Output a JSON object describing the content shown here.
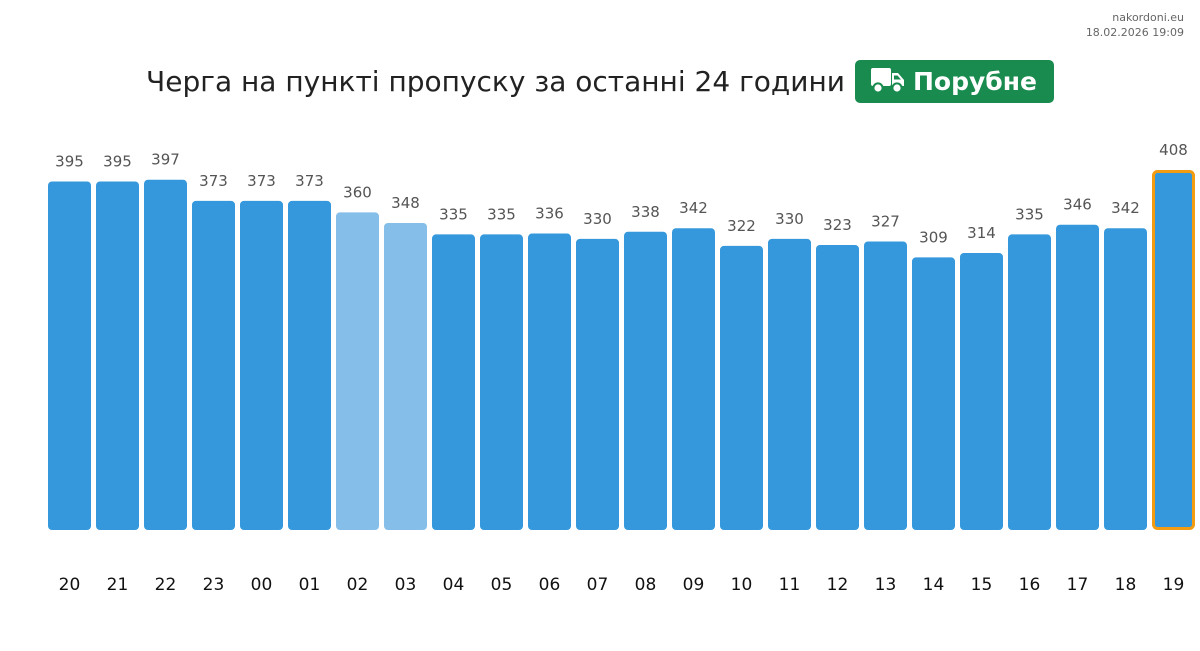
{
  "header": {
    "site": "nakordoni.eu",
    "timestamp": "18.02.2026 19:09"
  },
  "title": "Черга на пункті пропуску за останні 24 години",
  "badge": {
    "label": "Порубне",
    "icon": "truck-icon",
    "color": "#1a8b4f"
  },
  "colors": {
    "bar": "#3698dc",
    "bar_light": "#85bfe9",
    "highlight_border": "#f39c12"
  },
  "chart_data": {
    "type": "bar",
    "title": "Черга на пункті пропуску за останні 24 години",
    "categories": [
      "20",
      "21",
      "22",
      "23",
      "00",
      "01",
      "02",
      "03",
      "04",
      "05",
      "06",
      "07",
      "08",
      "09",
      "10",
      "11",
      "12",
      "13",
      "14",
      "15",
      "16",
      "17",
      "18",
      "19"
    ],
    "values": [
      395,
      395,
      397,
      373,
      373,
      373,
      360,
      348,
      335,
      335,
      336,
      330,
      338,
      342,
      322,
      330,
      323,
      327,
      309,
      314,
      335,
      346,
      342,
      408
    ],
    "light_bars": [
      "02",
      "03"
    ],
    "highlighted": "19",
    "ylim": [
      0,
      408
    ],
    "xlabel": "",
    "ylabel": "",
    "grid": false,
    "data_labels": true
  }
}
